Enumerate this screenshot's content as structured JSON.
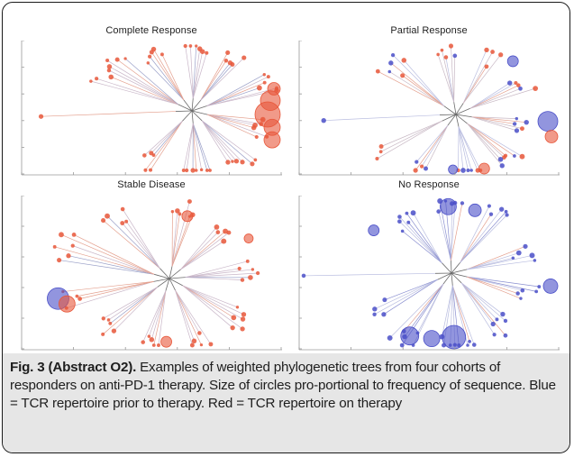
{
  "figure": {
    "panels": [
      {
        "id": "complete",
        "title": "Complete Response",
        "dominant_color": "red"
      },
      {
        "id": "partial",
        "title": "Partial Response",
        "dominant_color": "mixed"
      },
      {
        "id": "stable",
        "title": "Stable Disease",
        "dominant_color": "red"
      },
      {
        "id": "none",
        "title": "No Response",
        "dominant_color": "blue"
      }
    ],
    "colors": {
      "prior": "#4a4fc8",
      "on_therapy": "#e8573a",
      "branch": "#6a6a6a",
      "caption_bg": "#e6e6e6",
      "frame": "#1a1a1a"
    }
  },
  "caption": {
    "label": "Fig. 3 (Abstract O2).",
    "text": " Examples of weighted phylogenetic trees from four cohorts of responders on anti-PD-1 therapy. Size of circles pro-portional to frequency of sequence. Blue = TCR repertoire prior to therapy. Red = TCR repertoire on therapy"
  }
}
